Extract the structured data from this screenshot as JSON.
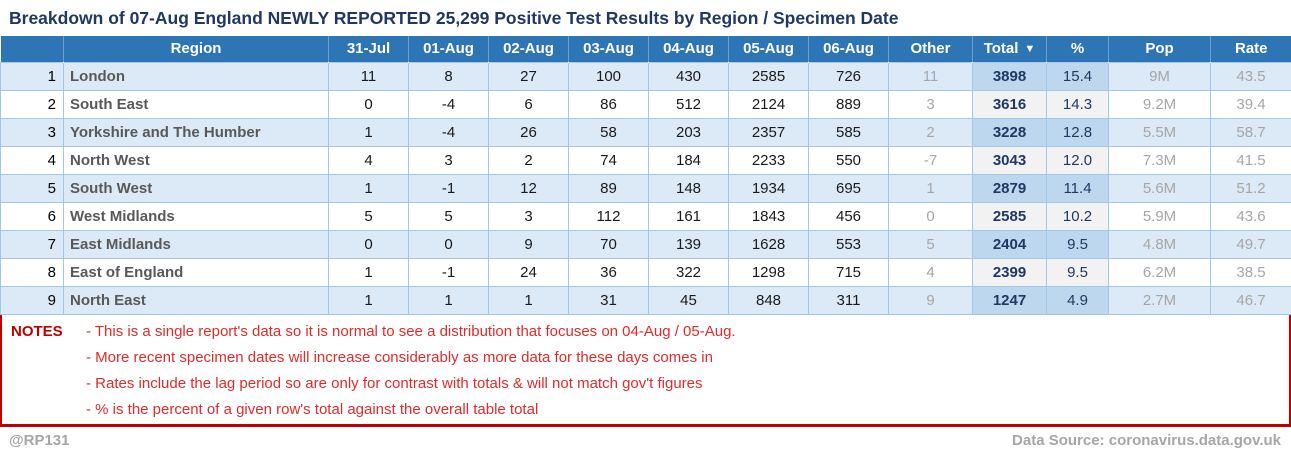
{
  "title": "Breakdown of 07-Aug England NEWLY REPORTED 25,299 Positive Test Results by Region / Specimen Date",
  "chart_data": {
    "type": "table",
    "title": "Breakdown of 07-Aug England NEWLY REPORTED 25,299 Positive Test Results by Region / Specimen Date",
    "columns": [
      "Region",
      "31-Jul",
      "01-Aug",
      "02-Aug",
      "03-Aug",
      "04-Aug",
      "05-Aug",
      "06-Aug",
      "Other",
      "Total",
      "%",
      "Pop",
      "Rate"
    ],
    "sort_indicator": "▼",
    "sorted_by": "Total",
    "rows": [
      {
        "num": "1",
        "region": "London",
        "values": [
          "11",
          "8",
          "27",
          "100",
          "430",
          "2585",
          "726"
        ],
        "other": "11",
        "total": "3898",
        "pct": "15.4",
        "pop": "9M",
        "rate": "43.5"
      },
      {
        "num": "2",
        "region": "South East",
        "values": [
          "0",
          "-4",
          "6",
          "86",
          "512",
          "2124",
          "889"
        ],
        "other": "3",
        "total": "3616",
        "pct": "14.3",
        "pop": "9.2M",
        "rate": "39.4"
      },
      {
        "num": "3",
        "region": "Yorkshire and The Humber",
        "values": [
          "1",
          "-4",
          "26",
          "58",
          "203",
          "2357",
          "585"
        ],
        "other": "2",
        "total": "3228",
        "pct": "12.8",
        "pop": "5.5M",
        "rate": "58.7"
      },
      {
        "num": "4",
        "region": "North West",
        "values": [
          "4",
          "3",
          "2",
          "74",
          "184",
          "2233",
          "550"
        ],
        "other": "-7",
        "total": "3043",
        "pct": "12.0",
        "pop": "7.3M",
        "rate": "41.5"
      },
      {
        "num": "5",
        "region": "South West",
        "values": [
          "1",
          "-1",
          "12",
          "89",
          "148",
          "1934",
          "695"
        ],
        "other": "1",
        "total": "2879",
        "pct": "11.4",
        "pop": "5.6M",
        "rate": "51.2"
      },
      {
        "num": "6",
        "region": "West Midlands",
        "values": [
          "5",
          "5",
          "3",
          "112",
          "161",
          "1843",
          "456"
        ],
        "other": "0",
        "total": "2585",
        "pct": "10.2",
        "pop": "5.9M",
        "rate": "43.6"
      },
      {
        "num": "7",
        "region": "East Midlands",
        "values": [
          "0",
          "0",
          "9",
          "70",
          "139",
          "1628",
          "553"
        ],
        "other": "5",
        "total": "2404",
        "pct": "9.5",
        "pop": "4.8M",
        "rate": "49.7"
      },
      {
        "num": "8",
        "region": "East of England",
        "values": [
          "1",
          "-1",
          "24",
          "36",
          "322",
          "1298",
          "715"
        ],
        "other": "4",
        "total": "2399",
        "pct": "9.5",
        "pop": "6.2M",
        "rate": "38.5"
      },
      {
        "num": "9",
        "region": "North East",
        "values": [
          "1",
          "1",
          "1",
          "31",
          "45",
          "848",
          "311"
        ],
        "other": "9",
        "total": "1247",
        "pct": "4.9",
        "pop": "2.7M",
        "rate": "46.7"
      }
    ]
  },
  "notes": {
    "label": "NOTES",
    "items": [
      "- This is a single report's data so it is normal to see a distribution that focuses on 04-Aug / 05-Aug.",
      "- More recent specimen dates will increase considerably as more data for these days comes in",
      "- Rates include the lag period so are only for contrast with totals & will not match gov't figures",
      "- % is the percent of a given row's total against the overall table total"
    ]
  },
  "footer": {
    "handle": "@RP131",
    "source": "Data Source: coronavirus.data.gov.uk"
  },
  "colors": {
    "header_bg": "#2E75B6",
    "band_blue": "#DCE9F7",
    "band_total": "#BDD7EE",
    "white_total": "#F2F2F2",
    "title_navy": "#1F3864",
    "notes_label_red": "#C00000",
    "notes_text_red": "#DF2B2B",
    "muted_gray": "#A6A6A6"
  }
}
